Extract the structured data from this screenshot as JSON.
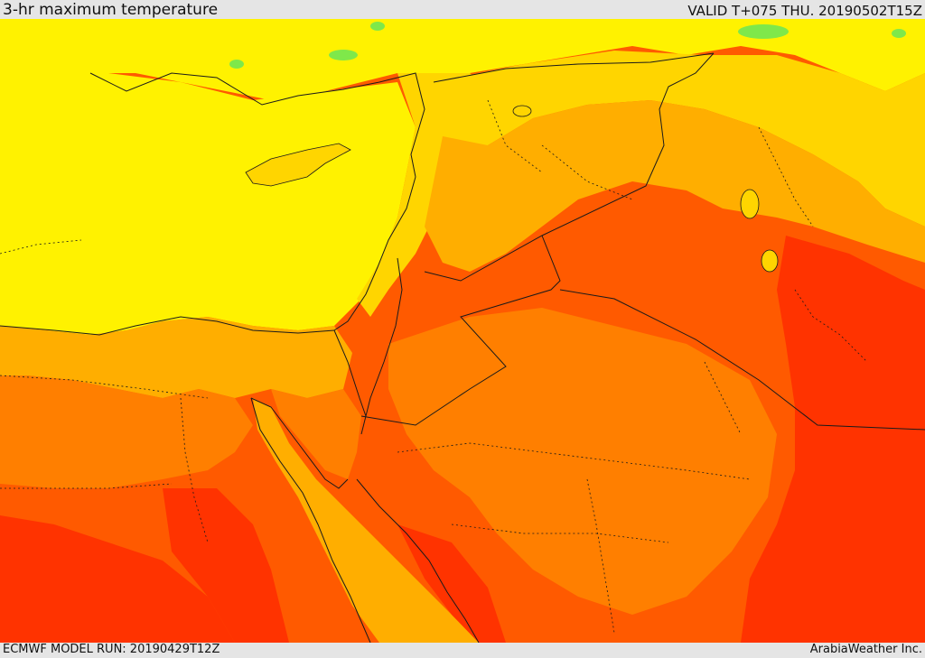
{
  "header": {
    "title": "3-hr maximum temperature",
    "valid": "VALID T+075 THU. 20190502T15Z"
  },
  "footer": {
    "model_run": "ECMWF MODEL RUN: 20190429T12Z",
    "credit": "ArabiaWeather Inc."
  },
  "colors": {
    "temp_band_1": "#7fe84a",
    "temp_band_2": "#d6ef2a",
    "temp_band_3": "#fff200",
    "temp_band_4": "#ffd500",
    "temp_band_5": "#ffae00",
    "temp_band_6": "#ff7f00",
    "temp_band_7": "#ff5a00",
    "temp_band_8": "#ff3300",
    "border_color": "#1a1a1a"
  }
}
